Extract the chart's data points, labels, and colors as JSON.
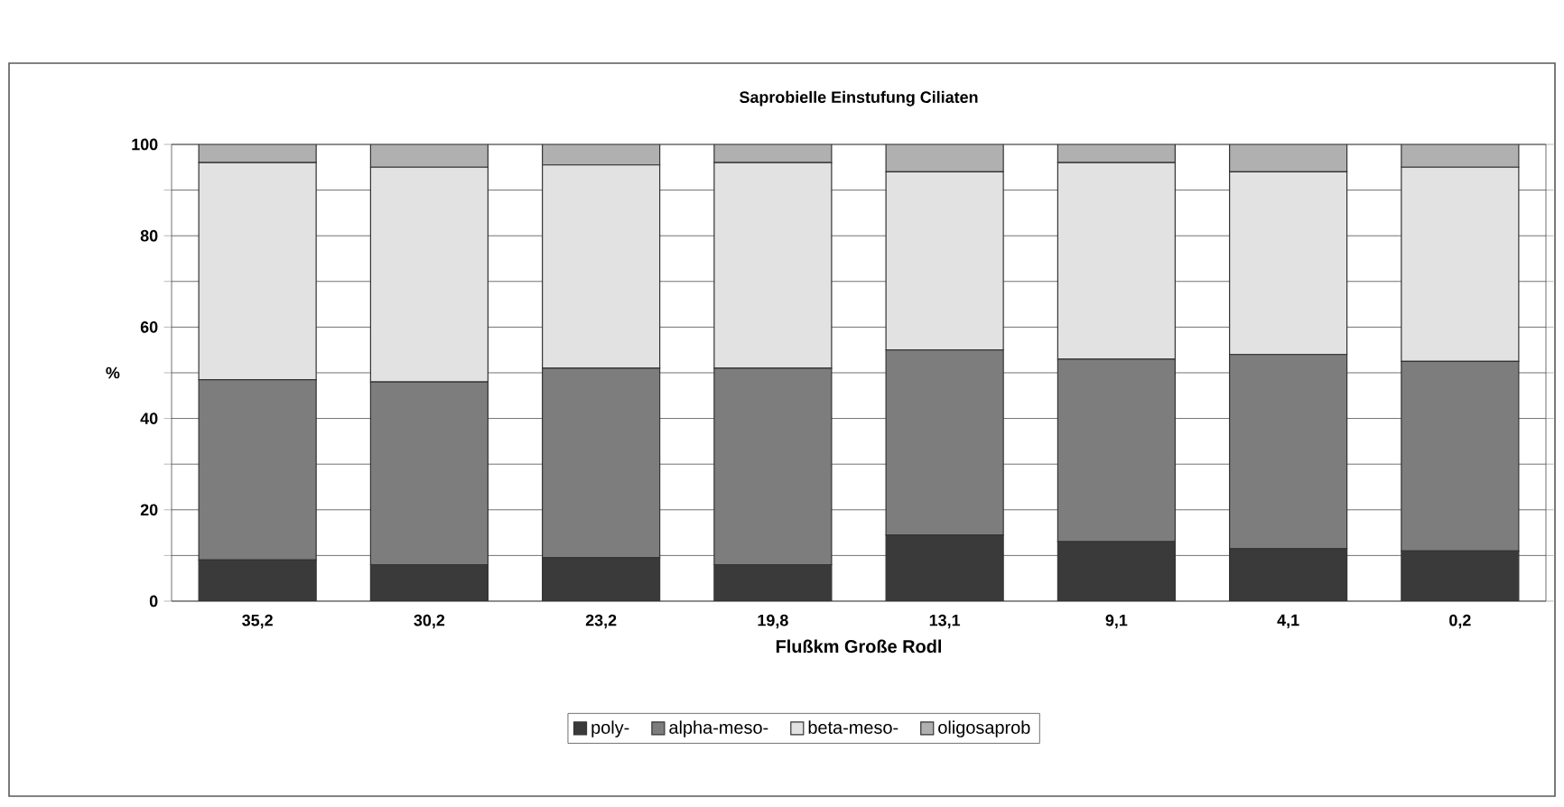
{
  "chart_data": {
    "type": "bar",
    "stacked": true,
    "title": "Saprobielle Einstufung Ciliaten",
    "xlabel": "Flußkm Große Rodl",
    "ylabel": "%",
    "categories": [
      "35,2",
      "30,2",
      "23,2",
      "19,8",
      "13,1",
      "9,1",
      "4,1",
      "0,2"
    ],
    "series": [
      {
        "name": "poly-",
        "color": "#3a3a3a",
        "values": [
          9,
          8,
          9.5,
          8,
          14.5,
          13,
          11.5,
          11
        ]
      },
      {
        "name": "alpha-meso-",
        "color": "#7d7d7d",
        "values": [
          39.5,
          40,
          41.5,
          43,
          40.5,
          40,
          42.5,
          41.5
        ]
      },
      {
        "name": "beta-meso-",
        "color": "#e2e2e2",
        "values": [
          47.5,
          47,
          44.5,
          45,
          39,
          43,
          40,
          42.5
        ]
      },
      {
        "name": "oligosaprob",
        "color": "#b0b0b0",
        "values": [
          4,
          5,
          4.5,
          4,
          6,
          4,
          6,
          5
        ]
      }
    ],
    "ylim": [
      0,
      100
    ],
    "yticks": [
      0,
      {
        "value": 10,
        "label": null
      },
      20,
      {
        "value": 30,
        "label": null
      },
      40,
      {
        "value": 50,
        "label": null
      },
      60,
      {
        "value": 70,
        "label": null
      },
      80,
      {
        "value": 90,
        "label": null
      },
      100
    ],
    "grid": "y",
    "legend": "bottom"
  }
}
